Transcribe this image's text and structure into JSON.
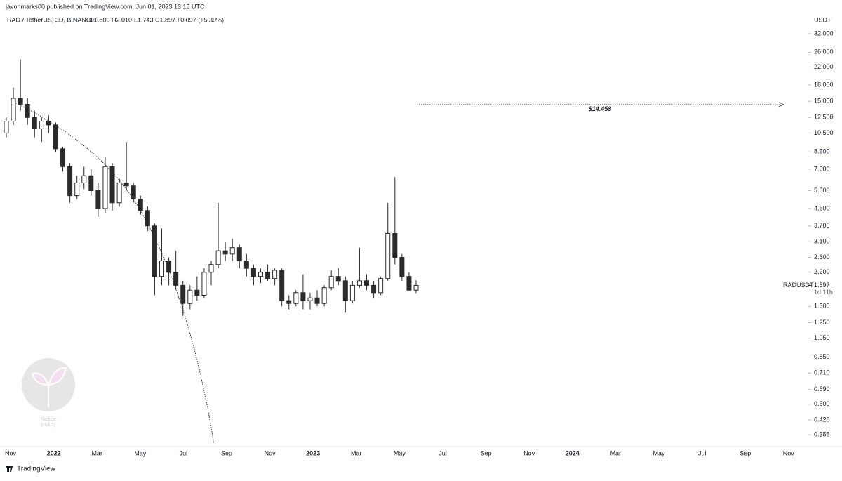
{
  "header": "javonmarks00 published on TradingView.com, Jun 01, 2023 13:15 UTC",
  "chart_data": {
    "type": "candlestick",
    "symbol": "RAD / TetherUS, 3D, BINANCE",
    "ohlc_labels": [
      "O1.800",
      "H2.010",
      "L1.743",
      "C1.897"
    ],
    "change": "+0.097 (+5.39%)",
    "currency": "USDT",
    "log_scale": true,
    "ylim": [
      0.321,
      37.47
    ],
    "yticks": [
      {
        "value": 32,
        "label": "32.000"
      },
      {
        "value": 26,
        "label": "26.000"
      },
      {
        "value": 22,
        "label": "22.000"
      },
      {
        "value": 18,
        "label": "18.000"
      },
      {
        "value": 15,
        "label": "15.000"
      },
      {
        "value": 12.5,
        "label": "12.500"
      },
      {
        "value": 10.5,
        "label": "10.500"
      },
      {
        "value": 8.5,
        "label": "8.500"
      },
      {
        "value": 7,
        "label": "7.000"
      },
      {
        "value": 5.5,
        "label": "5.500"
      },
      {
        "value": 4.5,
        "label": "4.500"
      },
      {
        "value": 3.7,
        "label": "3.700"
      },
      {
        "value": 3.1,
        "label": "3.100"
      },
      {
        "value": 2.6,
        "label": "2.600"
      },
      {
        "value": 2.2,
        "label": "2.200"
      },
      {
        "value": 1.5,
        "label": "1.500"
      },
      {
        "value": 1.25,
        "label": "1.250"
      },
      {
        "value": 1.05,
        "label": "1.050"
      },
      {
        "value": 0.85,
        "label": "0.850"
      },
      {
        "value": 0.71,
        "label": "0.710"
      },
      {
        "value": 0.59,
        "label": "0.590"
      },
      {
        "value": 0.5,
        "label": "0.500"
      },
      {
        "value": 0.42,
        "label": "0.420"
      },
      {
        "value": 0.355,
        "label": "0.355"
      }
    ],
    "time_labels": [
      "Nov",
      "2022",
      "Mar",
      "May",
      "Jul",
      "Sep",
      "Nov",
      "2023",
      "Mar",
      "May",
      "Jul",
      "Sep",
      "Nov",
      "2024",
      "Mar",
      "May",
      "Jul",
      "Sep",
      "Nov"
    ],
    "ohlc": [
      [
        10.5,
        12.5,
        10.0,
        12.0
      ],
      [
        12.0,
        17.5,
        11.5,
        15.5
      ],
      [
        15.5,
        24.0,
        13.5,
        14.5
      ],
      [
        14.5,
        15.5,
        11.5,
        12.5
      ],
      [
        12.5,
        13.5,
        10.0,
        11.0
      ],
      [
        11.0,
        12.5,
        9.5,
        12.0
      ],
      [
        12.0,
        12.8,
        10.5,
        11.5
      ],
      [
        11.5,
        11.8,
        8.5,
        8.8
      ],
      [
        8.8,
        9.0,
        6.8,
        7.2
      ],
      [
        7.2,
        7.5,
        4.8,
        5.2
      ],
      [
        5.2,
        6.5,
        5.0,
        6.0
      ],
      [
        6.0,
        7.2,
        5.6,
        6.5
      ],
      [
        6.5,
        7.0,
        5.2,
        5.5
      ],
      [
        5.5,
        6.0,
        4.1,
        4.5
      ],
      [
        4.5,
        8.0,
        4.3,
        7.2
      ],
      [
        7.2,
        7.5,
        4.4,
        4.8
      ],
      [
        4.8,
        6.3,
        4.6,
        6.0
      ],
      [
        6.0,
        9.5,
        5.5,
        5.8
      ],
      [
        5.8,
        6.0,
        4.8,
        5.0
      ],
      [
        5.0,
        5.2,
        4.2,
        4.4
      ],
      [
        4.4,
        4.6,
        3.5,
        3.7
      ],
      [
        3.7,
        3.8,
        1.7,
        2.1
      ],
      [
        2.1,
        3.6,
        1.9,
        2.5
      ],
      [
        2.5,
        2.6,
        1.9,
        2.2
      ],
      [
        2.2,
        2.8,
        1.8,
        1.9
      ],
      [
        1.9,
        2.0,
        1.35,
        1.55
      ],
      [
        1.55,
        1.9,
        1.45,
        1.8
      ],
      [
        1.8,
        2.1,
        1.6,
        1.7
      ],
      [
        1.7,
        2.3,
        1.65,
        2.2
      ],
      [
        2.2,
        2.5,
        1.9,
        2.4
      ],
      [
        2.4,
        4.8,
        2.3,
        2.8
      ],
      [
        2.8,
        3.1,
        2.5,
        2.7
      ],
      [
        2.7,
        3.2,
        2.5,
        2.9
      ],
      [
        2.9,
        3.0,
        2.3,
        2.5
      ],
      [
        2.5,
        2.7,
        2.1,
        2.3
      ],
      [
        2.3,
        2.4,
        1.9,
        2.1
      ],
      [
        2.1,
        2.3,
        1.95,
        2.2
      ],
      [
        2.2,
        2.4,
        2.0,
        2.05
      ],
      [
        2.05,
        2.3,
        1.9,
        2.25
      ],
      [
        2.25,
        2.3,
        1.5,
        1.6
      ],
      [
        1.6,
        1.7,
        1.45,
        1.55
      ],
      [
        1.55,
        1.8,
        1.5,
        1.75
      ],
      [
        1.75,
        2.15,
        1.45,
        1.6
      ],
      [
        1.6,
        1.75,
        1.45,
        1.65
      ],
      [
        1.65,
        1.8,
        1.5,
        1.55
      ],
      [
        1.55,
        1.9,
        1.5,
        1.85
      ],
      [
        1.85,
        2.25,
        1.8,
        2.1
      ],
      [
        2.1,
        2.3,
        1.9,
        2.0
      ],
      [
        2.0,
        2.1,
        1.4,
        1.6
      ],
      [
        1.6,
        2.0,
        1.55,
        1.9
      ],
      [
        1.9,
        2.9,
        1.85,
        2.0
      ],
      [
        2.0,
        2.15,
        1.8,
        1.9
      ],
      [
        1.9,
        2.0,
        1.65,
        1.75
      ],
      [
        1.75,
        2.1,
        1.7,
        2.05
      ],
      [
        2.05,
        4.8,
        2.0,
        3.4
      ],
      [
        3.4,
        6.4,
        2.4,
        2.6
      ],
      [
        2.6,
        2.7,
        2.0,
        2.1
      ],
      [
        2.1,
        2.2,
        1.8,
        1.8
      ],
      [
        1.8,
        2.01,
        1.743,
        1.897
      ]
    ],
    "price_line": {
      "value": 14.458,
      "label": "$14.458"
    },
    "last_price": {
      "name": "RADUSDT",
      "value": 1.897,
      "label": "1.897",
      "countdown": "1d 11h"
    },
    "watermark": [
      "Radicle",
      "(RAD)"
    ]
  },
  "footer": "TradingView"
}
